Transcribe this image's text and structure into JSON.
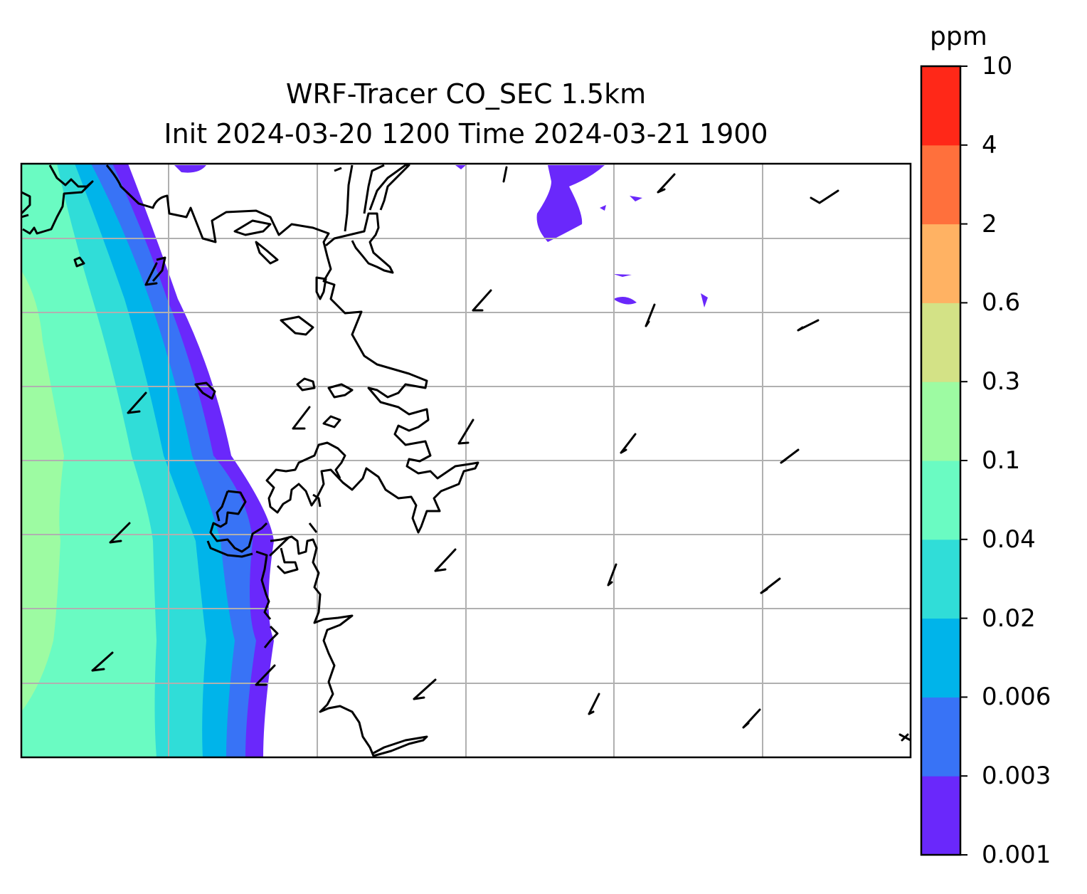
{
  "title": {
    "line1": "WRF-Tracer CO_SEC 1.5km",
    "line2": "Init 2024-03-20 1200 Time 2024-03-21 1900"
  },
  "colorbar": {
    "unit": "ppm",
    "levels": [
      "0.001",
      "0.003",
      "0.006",
      "0.02",
      "0.04",
      "0.1",
      "0.3",
      "0.6",
      "2",
      "4",
      "10"
    ],
    "colors": [
      "#6a28fb",
      "#3873f6",
      "#00b4ea",
      "#30ddd8",
      "#6afbc2",
      "#9dfba2",
      "#d3e286",
      "#ffb263",
      "#ff703c",
      "#ff2818"
    ]
  },
  "map": {
    "gridlines": true,
    "coastline_color": "#000000",
    "wind_barbs": true
  }
}
